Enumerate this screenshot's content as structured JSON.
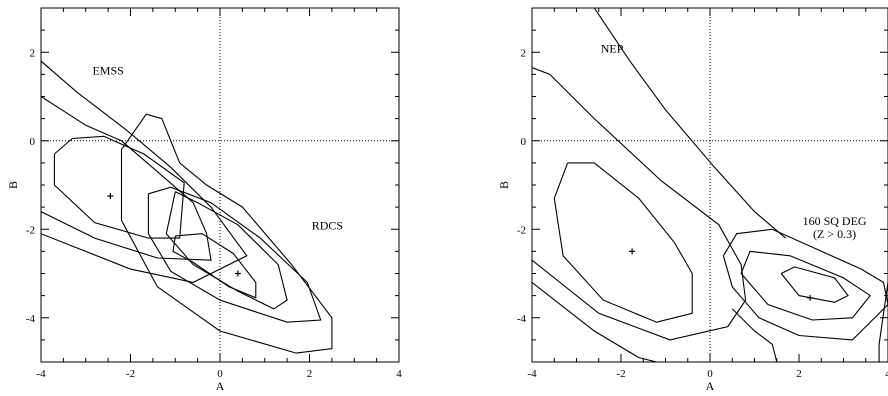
{
  "chart_data": [
    {
      "type": "contour",
      "xlabel": "A",
      "ylabel": "B",
      "xlim": [
        -4,
        4
      ],
      "ylim": [
        -5,
        3
      ],
      "xticks": [
        -4,
        -2,
        0,
        2,
        4
      ],
      "yticks": [
        -4,
        -2,
        0,
        2
      ],
      "reference_lines": {
        "x": 0,
        "y": 0
      },
      "annotations": [
        {
          "text": "EMSS",
          "x": -2.5,
          "y": 1.5
        },
        {
          "text": "RDCS",
          "x": 2.4,
          "y": -2.0
        }
      ],
      "best_fit_points": [
        {
          "x": -2.45,
          "y": -1.25
        },
        {
          "x": 0.4,
          "y": -3.0
        }
      ],
      "series": [
        {
          "contours": [
            [
              [
                -3.7,
                -0.3
              ],
              [
                -3.3,
                0.05
              ],
              [
                -2.6,
                0.1
              ],
              [
                -1.7,
                -0.3
              ],
              [
                -0.8,
                -0.95
              ],
              [
                -0.9,
                -2.2
              ],
              [
                -1.6,
                -2.2
              ],
              [
                -2.8,
                -1.85
              ],
              [
                -3.7,
                -1.0
              ],
              [
                -3.7,
                -0.3
              ]
            ],
            [
              [
                -4.0,
                1.0
              ],
              [
                -3.0,
                0.35
              ],
              [
                -2.2,
                0.0
              ],
              [
                -1.4,
                -0.7
              ],
              [
                -0.6,
                -1.4
              ],
              [
                -0.3,
                -2.1
              ],
              [
                -0.2,
                -2.7
              ],
              [
                -1.4,
                -2.65
              ],
              [
                -2.8,
                -2.2
              ],
              [
                -4.0,
                -1.6
              ]
            ],
            [
              [
                -4.0,
                1.8
              ],
              [
                -3.2,
                1.1
              ],
              [
                -2.1,
                0.25
              ],
              [
                -1.1,
                -0.6
              ],
              [
                -0.2,
                -1.5
              ],
              [
                0.6,
                -2.6
              ],
              [
                -0.6,
                -3.2
              ],
              [
                -2.0,
                -2.9
              ],
              [
                -4.0,
                -2.1
              ]
            ],
            [
              [
                -1.0,
                -1.15
              ],
              [
                -0.5,
                -1.4
              ],
              [
                0.4,
                -1.9
              ],
              [
                1.3,
                -2.8
              ],
              [
                1.5,
                -3.6
              ],
              [
                1.2,
                -3.8
              ],
              [
                0.4,
                -3.4
              ],
              [
                -0.6,
                -2.8
              ],
              [
                -1.2,
                -2.1
              ],
              [
                -1.0,
                -1.15
              ]
            ],
            [
              [
                -1.6,
                -1.2
              ],
              [
                -1.1,
                -1.05
              ],
              [
                -0.2,
                -1.4
              ],
              [
                0.9,
                -2.2
              ],
              [
                1.95,
                -3.2
              ],
              [
                2.25,
                -4.05
              ],
              [
                1.5,
                -4.1
              ],
              [
                0.0,
                -3.6
              ],
              [
                -1.1,
                -2.95
              ],
              [
                -1.6,
                -2.1
              ],
              [
                -1.6,
                -1.2
              ]
            ],
            [
              [
                -1.65,
                0.6
              ],
              [
                -1.3,
                0.5
              ],
              [
                -0.9,
                -0.5
              ],
              [
                -0.3,
                -1.0
              ],
              [
                0.5,
                -1.5
              ],
              [
                1.6,
                -2.8
              ],
              [
                2.5,
                -4.0
              ],
              [
                2.5,
                -4.7
              ],
              [
                1.7,
                -4.8
              ],
              [
                0.0,
                -4.3
              ],
              [
                -1.4,
                -3.3
              ],
              [
                -2.2,
                -1.8
              ],
              [
                -2.2,
                -0.2
              ],
              [
                -1.65,
                0.6
              ]
            ],
            [
              [
                -1.0,
                -2.15
              ],
              [
                -0.4,
                -2.1
              ],
              [
                0.3,
                -2.55
              ],
              [
                0.8,
                -3.2
              ],
              [
                0.8,
                -3.55
              ],
              [
                0.2,
                -3.3
              ],
              [
                -0.6,
                -2.75
              ],
              [
                -1.05,
                -2.5
              ],
              [
                -1.0,
                -2.15
              ]
            ]
          ]
        }
      ]
    },
    {
      "type": "contour",
      "xlabel": "A",
      "ylabel": "B",
      "xlim": [
        -4,
        4
      ],
      "ylim": [
        -5,
        3
      ],
      "xticks": [
        -4,
        -2,
        0,
        2,
        4
      ],
      "yticks": [
        -4,
        -2,
        0,
        2
      ],
      "reference_lines": {
        "x": 0,
        "y": 0
      },
      "annotations": [
        {
          "text": "NEP",
          "x": -2.2,
          "y": 2.0
        },
        {
          "text": "160 SQ DEG",
          "x": 2.8,
          "y": -1.9
        },
        {
          "text": "(Z > 0.3)",
          "x": 2.8,
          "y": -2.2
        }
      ],
      "best_fit_points": [
        {
          "x": -1.75,
          "y": -2.5
        },
        {
          "x": 2.25,
          "y": -3.55
        }
      ],
      "series": [
        {
          "contours": [
            [
              [
                -3.2,
                -0.5
              ],
              [
                -2.6,
                -0.5
              ],
              [
                -1.6,
                -1.3
              ],
              [
                -0.8,
                -2.3
              ],
              [
                -0.4,
                -3.0
              ],
              [
                -0.4,
                -3.9
              ],
              [
                -1.2,
                -4.1
              ],
              [
                -2.4,
                -3.6
              ],
              [
                -3.3,
                -2.6
              ],
              [
                -3.5,
                -1.3
              ],
              [
                -3.2,
                -0.5
              ]
            ],
            [
              [
                -4.0,
                1.65
              ],
              [
                -3.6,
                1.5
              ],
              [
                -2.6,
                0.5
              ],
              [
                -1.1,
                -0.9
              ],
              [
                0.2,
                -1.9
              ],
              [
                0.7,
                -2.8
              ],
              [
                0.8,
                -3.6
              ],
              [
                0.4,
                -4.2
              ],
              [
                -0.9,
                -4.5
              ],
              [
                -2.5,
                -3.9
              ],
              [
                -4.0,
                -2.7
              ]
            ],
            [
              [
                -2.6,
                3.0
              ],
              [
                -1.8,
                1.8
              ],
              [
                -1.0,
                0.7
              ],
              [
                0.1,
                -0.6
              ],
              [
                1.0,
                -1.6
              ],
              [
                1.7,
                -2.2
              ]
            ],
            [
              [
                -4.0,
                -3.2
              ],
              [
                -2.6,
                -4.3
              ],
              [
                -1.6,
                -4.9
              ],
              [
                -1.2,
                -5.0
              ]
            ],
            [
              [
                0.3,
                -2.6
              ],
              [
                0.6,
                -2.1
              ],
              [
                1.4,
                -2.0
              ],
              [
                3.4,
                -2.9
              ],
              [
                3.9,
                -3.2
              ],
              [
                4.0,
                -3.7
              ],
              [
                3.2,
                -4.5
              ],
              [
                2.0,
                -4.4
              ],
              [
                1.1,
                -4.0
              ],
              [
                0.5,
                -3.3
              ],
              [
                0.3,
                -2.6
              ]
            ],
            [
              [
                0.7,
                -3.0
              ],
              [
                0.9,
                -2.5
              ],
              [
                1.8,
                -2.6
              ],
              [
                3.0,
                -3.1
              ],
              [
                3.6,
                -3.5
              ],
              [
                3.2,
                -4.0
              ],
              [
                2.3,
                -4.05
              ],
              [
                1.3,
                -3.7
              ],
              [
                0.7,
                -3.0
              ]
            ],
            [
              [
                1.6,
                -3.0
              ],
              [
                1.9,
                -2.85
              ],
              [
                2.8,
                -3.1
              ],
              [
                3.1,
                -3.5
              ],
              [
                2.8,
                -3.65
              ],
              [
                2.0,
                -3.5
              ],
              [
                1.6,
                -3.0
              ]
            ],
            [
              [
                0.5,
                -3.8
              ],
              [
                1.0,
                -4.3
              ],
              [
                1.4,
                -4.6
              ],
              [
                1.5,
                -5.0
              ]
            ],
            [
              [
                4.0,
                -3.2
              ],
              [
                3.8,
                -4.6
              ],
              [
                3.8,
                -5.0
              ]
            ]
          ]
        }
      ]
    }
  ]
}
